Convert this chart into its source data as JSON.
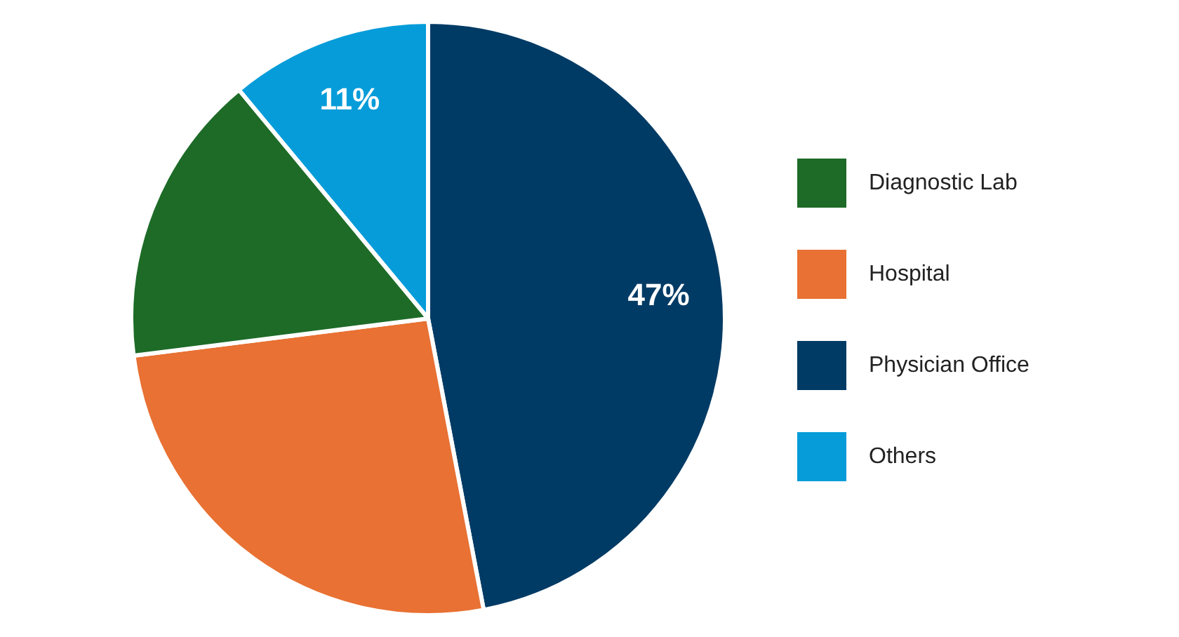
{
  "chart_data": {
    "type": "pie",
    "categories": [
      "Diagnostic Lab",
      "Hospital",
      "Physician Office",
      "Others"
    ],
    "values": [
      16,
      26,
      47,
      11
    ],
    "colors": [
      "#1d6b27",
      "#e87133",
      "#003b65",
      "#069cd9"
    ],
    "value_labels": [
      null,
      null,
      "47%",
      "11%"
    ],
    "legend": "right"
  }
}
